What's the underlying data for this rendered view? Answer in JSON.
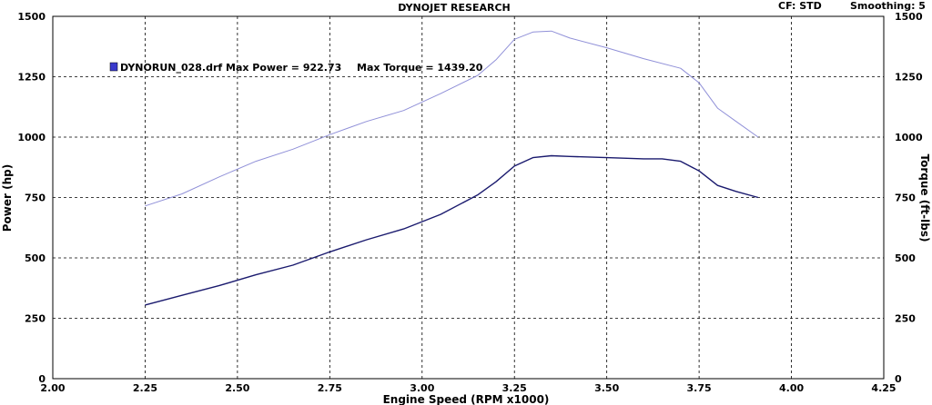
{
  "header": {
    "title": "DYNOJET RESEARCH",
    "cf_label": "CF: STD",
    "smoothing_label": "Smoothing: 5"
  },
  "legend": {
    "run_label": "DYNORUN_028.drf",
    "max_power_label": "Max Power = 922.73",
    "max_torque_label": "Max Torque = 1439.20",
    "swatch_color": "#3a3acc"
  },
  "chart_data": {
    "type": "line",
    "title": "DYNOJET RESEARCH",
    "xlabel": "Engine Speed (RPM x1000)",
    "ylabel": "Power (hp)",
    "y2label": "Torque (ft-lbs)",
    "xlim": [
      2.0,
      4.25
    ],
    "ylim": [
      0,
      1500
    ],
    "y2lim": [
      0,
      1500
    ],
    "x_ticks": [
      "2.00",
      "2.25",
      "2.50",
      "2.75",
      "3.00",
      "3.25",
      "3.50",
      "3.75",
      "4.00",
      "4.25"
    ],
    "y_ticks": [
      "0",
      "250",
      "500",
      "750",
      "1000",
      "1250",
      "1500"
    ],
    "y2_ticks": [
      "0",
      "250",
      "500",
      "750",
      "1000",
      "1250",
      "1500"
    ],
    "grid": true,
    "series": [
      {
        "name": "Power",
        "axis": "left",
        "color": "#1a1a6e",
        "x": [
          2.25,
          2.35,
          2.45,
          2.55,
          2.65,
          2.75,
          2.85,
          2.95,
          3.05,
          3.15,
          3.2,
          3.25,
          3.3,
          3.35,
          3.4,
          3.5,
          3.6,
          3.65,
          3.7,
          3.75,
          3.8,
          3.85,
          3.91
        ],
        "values": [
          305,
          345,
          385,
          430,
          470,
          525,
          575,
          620,
          680,
          760,
          815,
          880,
          915,
          923,
          920,
          915,
          910,
          910,
          900,
          860,
          800,
          775,
          750
        ]
      },
      {
        "name": "Torque",
        "axis": "right",
        "color": "#9090d8",
        "x": [
          2.25,
          2.35,
          2.45,
          2.55,
          2.65,
          2.75,
          2.85,
          2.95,
          3.05,
          3.15,
          3.2,
          3.25,
          3.3,
          3.35,
          3.4,
          3.5,
          3.6,
          3.7,
          3.75,
          3.8,
          3.85,
          3.91
        ],
        "values": [
          715,
          765,
          835,
          900,
          950,
          1010,
          1065,
          1110,
          1180,
          1255,
          1320,
          1405,
          1435,
          1439,
          1410,
          1370,
          1325,
          1285,
          1225,
          1120,
          1065,
          1000
        ]
      }
    ]
  }
}
